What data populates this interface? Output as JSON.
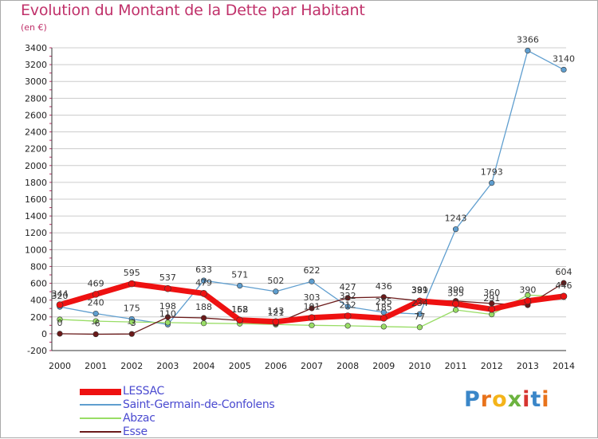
{
  "header": {
    "title": "Evolution du Montant de la Dette par Habitant",
    "subtitle": "(en €)"
  },
  "colors": {
    "title": "#c0316a",
    "grid": "#cccccc",
    "LESSAC": "#ee1111",
    "Saint-Germain-de-Confolens": "#5f9ecf",
    "Abzac": "#99dd66",
    "Esse": "#6b1a1a"
  },
  "logo": {
    "text": "Proxiti"
  },
  "chart_data": {
    "type": "line",
    "title": "Evolution du Montant de la Dette par Habitant",
    "subtitle": "(en €)",
    "xlabel": "",
    "ylabel": "",
    "x": [
      "2000",
      "2001",
      "2002",
      "2003",
      "2004",
      "2005",
      "2006",
      "2007",
      "2008",
      "2009",
      "2010",
      "2011",
      "2012",
      "2013",
      "2014"
    ],
    "ylim": [
      -200,
      3400
    ],
    "yticks": [
      -200,
      0,
      200,
      400,
      600,
      800,
      1000,
      1200,
      1400,
      1600,
      1800,
      2000,
      2200,
      2400,
      2600,
      2800,
      3000,
      3200,
      3400
    ],
    "grid": true,
    "legend": "bottom-left",
    "series": [
      {
        "name": "LESSAC",
        "values": [
          344,
          469,
          595,
          537,
          479,
          162,
          143,
          191,
          212,
          185,
          389,
          355,
          291,
          390,
          446
        ]
      },
      {
        "name": "Saint-Germain-de-Confolens",
        "values": [
          320,
          240,
          175,
          110,
          633,
          571,
          502,
          622,
          322,
          255,
          234,
          1243,
          1793,
          3366,
          3140
        ]
      },
      {
        "name": "Abzac",
        "values": [
          170,
          150,
          140,
          133,
          125,
          120,
          110,
          100,
          95,
          85,
          77,
          283,
          230,
          460,
          438
        ]
      },
      {
        "name": "Esse",
        "values": [
          0,
          -6,
          -3,
          198,
          188,
          158,
          121,
          303,
          427,
          436,
          391,
          390,
          360,
          340,
          604
        ]
      }
    ],
    "data_labels": [
      {
        "series": "LESSAC",
        "labels": [
          "344",
          "469",
          "595",
          "537",
          "479",
          "162",
          "143",
          "191",
          "212",
          "185",
          "389",
          "355",
          "291",
          "390",
          "446"
        ]
      },
      {
        "series": "Saint-Germain-de-Confolens",
        "labels": [
          "320",
          "240",
          "175",
          "110",
          "633",
          "571",
          "502",
          "622",
          "322",
          "255",
          "234",
          "1243",
          "1793",
          "3366",
          "3140"
        ]
      },
      {
        "series": "Abzac",
        "labels": [
          "",
          "",
          "",
          "",
          "",
          "",
          "",
          "",
          "",
          "",
          "77",
          "",
          "",
          "",
          ""
        ]
      },
      {
        "series": "Esse",
        "labels": [
          "0",
          "-6",
          "-3",
          "198",
          "188",
          "158",
          "121",
          "303",
          "427",
          "436",
          "391",
          "390",
          "360",
          "",
          "604"
        ]
      }
    ]
  }
}
